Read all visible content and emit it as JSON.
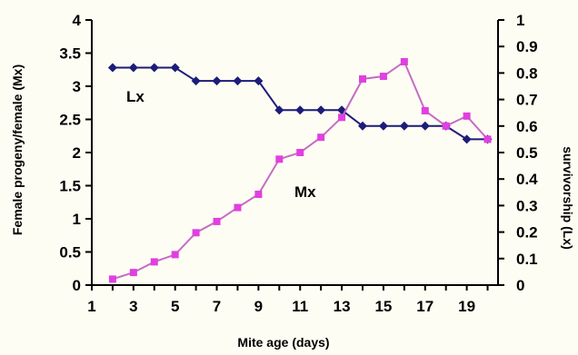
{
  "chart_data": {
    "type": "line",
    "xlabel": "Mite age (days)",
    "ylabel_left": "Female progeny/female (Mx)",
    "ylabel_right": "survivorship (Lx)",
    "xlim": [
      1,
      20.5
    ],
    "x_ticks": [
      1,
      3,
      5,
      7,
      9,
      11,
      13,
      15,
      17,
      19
    ],
    "ylim_left": [
      0,
      4
    ],
    "y_ticks_left": [
      "0",
      "0.5",
      "1",
      "1.5",
      "2",
      "2.5",
      "3",
      "3.5",
      "4"
    ],
    "ylim_right": [
      0,
      1
    ],
    "y_ticks_right": [
      "0",
      "0.1",
      "0.2",
      "0.3",
      "0.4",
      "0.5",
      "0.6",
      "0.7",
      "0.8",
      "0.9",
      "1"
    ],
    "grid": false,
    "legend": "none",
    "series": [
      {
        "name": "Lx",
        "axis": "right",
        "color": "#1c1c7a",
        "marker": "diamond",
        "x": [
          2,
          3,
          4,
          5,
          6,
          7,
          8,
          9,
          10,
          11,
          12,
          13,
          14,
          15,
          16,
          17,
          18,
          19,
          20
        ],
        "values": [
          0.82,
          0.82,
          0.82,
          0.82,
          0.77,
          0.77,
          0.77,
          0.77,
          0.66,
          0.66,
          0.66,
          0.66,
          0.6,
          0.6,
          0.6,
          0.6,
          0.6,
          0.55,
          0.55
        ]
      },
      {
        "name": "Mx",
        "axis": "left",
        "color": "#e040e0",
        "line_color": "#c46cc4",
        "marker": "square",
        "x": [
          2,
          3,
          4,
          5,
          6,
          7,
          8,
          9,
          10,
          11,
          12,
          13,
          14,
          15,
          16,
          17,
          18,
          19,
          20
        ],
        "values": [
          0.09,
          0.19,
          0.35,
          0.46,
          0.79,
          0.96,
          1.17,
          1.37,
          1.9,
          2.0,
          2.23,
          2.53,
          3.11,
          3.15,
          3.37,
          2.63,
          2.4,
          2.55,
          2.2
        ]
      }
    ]
  }
}
